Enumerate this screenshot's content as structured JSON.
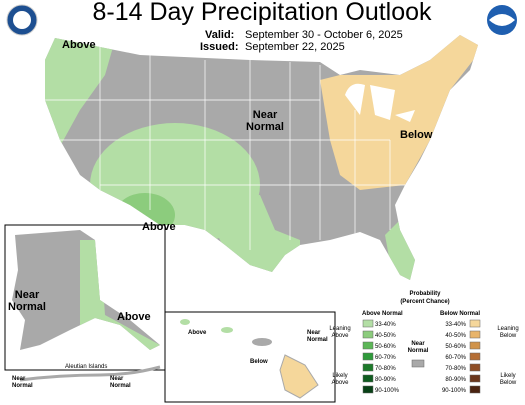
{
  "header": {
    "title": "8-14 Day Precipitation Outlook",
    "valid_label": "Valid:",
    "valid": "September 30 - October 6, 2025",
    "issued_label": "Issued:",
    "issued": "September 22, 2025"
  },
  "map_labels": {
    "northwest": "Above",
    "central": [
      "Near",
      "Normal"
    ],
    "northeast": "Below",
    "southwest": "Above",
    "alaska_near": [
      "Near",
      "Normal"
    ],
    "alaska_above": "Above",
    "aleutians": "Aleutian Islands",
    "aleutian_near_left": [
      "Near",
      "Normal"
    ],
    "aleutian_near_right": [
      "Near",
      "Normal"
    ],
    "hawaii_above": "Above",
    "hawaii_near": [
      "Near",
      "Normal"
    ],
    "hawaii_below": "Below"
  },
  "legend": {
    "title": [
      "Probability",
      "(Percent Chance)"
    ],
    "above_header": "Above Normal",
    "below_header": "Below Normal",
    "near": [
      "Near",
      "Normal"
    ],
    "near_color": "#a9a9a9",
    "leaning_above": [
      "Leaning",
      "Above"
    ],
    "likely_above": [
      "Likely",
      "Above"
    ],
    "leaning_below": [
      "Leaning",
      "Below"
    ],
    "likely_below": [
      "Likely",
      "Below"
    ],
    "above_classes": [
      {
        "label": "33-40%",
        "color": "#b3dea5"
      },
      {
        "label": "40-50%",
        "color": "#8ccc7d"
      },
      {
        "label": "50-60%",
        "color": "#5cb657"
      },
      {
        "label": "60-70%",
        "color": "#2e9a3a"
      },
      {
        "label": "70-80%",
        "color": "#1d7a2a"
      },
      {
        "label": "80-90%",
        "color": "#0f5c1f"
      },
      {
        "label": "90-100%",
        "color": "#084016"
      }
    ],
    "below_classes": [
      {
        "label": "33-40%",
        "color": "#f5d79b"
      },
      {
        "label": "40-50%",
        "color": "#e8b46a"
      },
      {
        "label": "50-60%",
        "color": "#d0934a"
      },
      {
        "label": "60-70%",
        "color": "#b56e35"
      },
      {
        "label": "70-80%",
        "color": "#8f4e26"
      },
      {
        "label": "80-90%",
        "color": "#6b361b"
      },
      {
        "label": "90-100%",
        "color": "#4a2310"
      }
    ]
  }
}
